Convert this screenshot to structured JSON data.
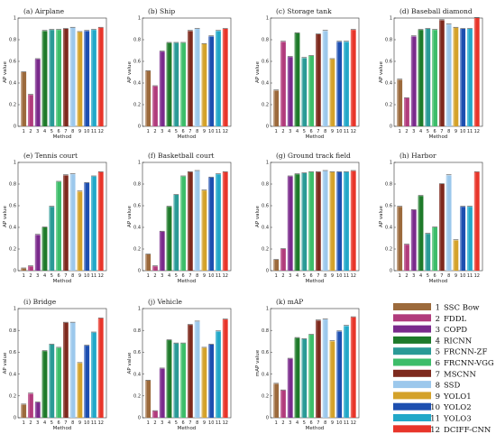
{
  "colors": [
    "#9c6a3c",
    "#b13b7c",
    "#7a2a8c",
    "#1e7a2a",
    "#2a9a96",
    "#3dbd6a",
    "#7e2a1e",
    "#9cc8ec",
    "#d4a22a",
    "#1d4fb0",
    "#22a8c8",
    "#e8352a"
  ],
  "legend": {
    "items": [
      {
        "num": "1",
        "label": "SSC Bow"
      },
      {
        "num": "2",
        "label": "FDDL"
      },
      {
        "num": "3",
        "label": "COPD"
      },
      {
        "num": "4",
        "label": "RICNN"
      },
      {
        "num": "5",
        "label": "FRCNN-ZF"
      },
      {
        "num": "6",
        "label": "FRCNN-VGG"
      },
      {
        "num": "7",
        "label": "MSCNN"
      },
      {
        "num": "8",
        "label": "SSD"
      },
      {
        "num": "9",
        "label": "YOLO1"
      },
      {
        "num": "10",
        "label": "YOLO2"
      },
      {
        "num": "11",
        "label": "YOLO3"
      },
      {
        "num": "12",
        "label": "DCIFF-CNN"
      }
    ]
  },
  "chart_data": [
    {
      "type": "bar",
      "title": "(a) Airplane",
      "xlabel": "Method",
      "ylabel": "AP value",
      "ylim": [
        0,
        1
      ],
      "categories": [
        "1",
        "2",
        "3",
        "4",
        "5",
        "6",
        "7",
        "8",
        "9",
        "10",
        "11",
        "12"
      ],
      "values": [
        0.5,
        0.29,
        0.62,
        0.88,
        0.89,
        0.89,
        0.9,
        0.91,
        0.87,
        0.88,
        0.89,
        0.91
      ]
    },
    {
      "type": "bar",
      "title": "(b) Ship",
      "xlabel": "Method",
      "ylabel": "AP value",
      "ylim": [
        0,
        1
      ],
      "categories": [
        "1",
        "2",
        "3",
        "4",
        "5",
        "6",
        "7",
        "8",
        "9",
        "10",
        "11",
        "12"
      ],
      "values": [
        0.51,
        0.37,
        0.69,
        0.77,
        0.77,
        0.77,
        0.88,
        0.9,
        0.76,
        0.83,
        0.88,
        0.9
      ]
    },
    {
      "type": "bar",
      "title": "(c) Storage tank",
      "xlabel": "Method",
      "ylabel": "AP value",
      "ylim": [
        0,
        1
      ],
      "categories": [
        "1",
        "2",
        "3",
        "4",
        "5",
        "6",
        "7",
        "8",
        "9",
        "10",
        "11",
        "12"
      ],
      "values": [
        0.33,
        0.78,
        0.64,
        0.86,
        0.63,
        0.65,
        0.85,
        0.88,
        0.62,
        0.78,
        0.78,
        0.89
      ]
    },
    {
      "type": "bar",
      "title": "(d) Baseball diamond",
      "xlabel": "Method",
      "ylabel": "AP value",
      "ylim": [
        0,
        1
      ],
      "categories": [
        "1",
        "2",
        "3",
        "4",
        "5",
        "6",
        "7",
        "8",
        "9",
        "10",
        "11",
        "12"
      ],
      "values": [
        0.43,
        0.26,
        0.83,
        0.89,
        0.9,
        0.89,
        0.98,
        0.94,
        0.91,
        0.9,
        0.9,
        1.0
      ]
    },
    {
      "type": "bar",
      "title": "(e) Tennis court",
      "xlabel": "Method",
      "ylabel": "AP value",
      "ylim": [
        0,
        1
      ],
      "categories": [
        "1",
        "2",
        "3",
        "4",
        "5",
        "6",
        "7",
        "8",
        "9",
        "10",
        "11",
        "12"
      ],
      "values": [
        0.02,
        0.04,
        0.33,
        0.4,
        0.59,
        0.82,
        0.88,
        0.89,
        0.73,
        0.81,
        0.87,
        0.91
      ]
    },
    {
      "type": "bar",
      "title": "(f) Basketball court",
      "xlabel": "Method",
      "ylabel": "AP value",
      "ylim": [
        0,
        1
      ],
      "categories": [
        "1",
        "2",
        "3",
        "4",
        "5",
        "6",
        "7",
        "8",
        "9",
        "10",
        "11",
        "12"
      ],
      "values": [
        0.15,
        0.04,
        0.36,
        0.59,
        0.7,
        0.87,
        0.91,
        0.92,
        0.74,
        0.86,
        0.89,
        0.91
      ]
    },
    {
      "type": "bar",
      "title": "(g) Ground track field",
      "xlabel": "Method",
      "ylabel": "AP value",
      "ylim": [
        0,
        1
      ],
      "categories": [
        "1",
        "2",
        "3",
        "4",
        "5",
        "6",
        "7",
        "8",
        "9",
        "10",
        "11",
        "12"
      ],
      "values": [
        0.1,
        0.2,
        0.87,
        0.89,
        0.9,
        0.91,
        0.91,
        0.92,
        0.91,
        0.91,
        0.91,
        0.92
      ]
    },
    {
      "type": "bar",
      "title": "(h) Harbor",
      "xlabel": "Method",
      "ylabel": "AP value",
      "ylim": [
        0,
        1
      ],
      "categories": [
        "1",
        "2",
        "3",
        "4",
        "5",
        "6",
        "7",
        "8",
        "9",
        "10",
        "11",
        "12"
      ],
      "values": [
        0.59,
        0.24,
        0.56,
        0.69,
        0.34,
        0.4,
        0.8,
        0.88,
        0.28,
        0.59,
        0.59,
        0.91
      ]
    },
    {
      "type": "bar",
      "title": "(i) Bridge",
      "xlabel": "Method",
      "ylabel": "AP value",
      "ylim": [
        0,
        1
      ],
      "categories": [
        "1",
        "2",
        "3",
        "4",
        "5",
        "6",
        "7",
        "8",
        "9",
        "10",
        "11",
        "12"
      ],
      "values": [
        0.12,
        0.22,
        0.14,
        0.61,
        0.67,
        0.64,
        0.87,
        0.87,
        0.5,
        0.66,
        0.78,
        0.91
      ]
    },
    {
      "type": "bar",
      "title": "(j) Vehicle",
      "xlabel": "Method",
      "ylabel": "AP value",
      "ylim": [
        0,
        1
      ],
      "categories": [
        "1",
        "2",
        "3",
        "4",
        "5",
        "6",
        "7",
        "8",
        "9",
        "10",
        "11",
        "12"
      ],
      "values": [
        0.34,
        0.06,
        0.45,
        0.71,
        0.68,
        0.68,
        0.85,
        0.88,
        0.64,
        0.67,
        0.79,
        0.9
      ]
    },
    {
      "type": "bar",
      "title": "(k) mAP",
      "xlabel": "Method",
      "ylabel": "mAP value",
      "ylim": [
        0,
        1
      ],
      "categories": [
        "1",
        "2",
        "3",
        "4",
        "5",
        "6",
        "7",
        "8",
        "9",
        "10",
        "11",
        "12"
      ],
      "values": [
        0.31,
        0.25,
        0.54,
        0.73,
        0.72,
        0.76,
        0.89,
        0.9,
        0.7,
        0.79,
        0.84,
        0.92
      ]
    }
  ]
}
